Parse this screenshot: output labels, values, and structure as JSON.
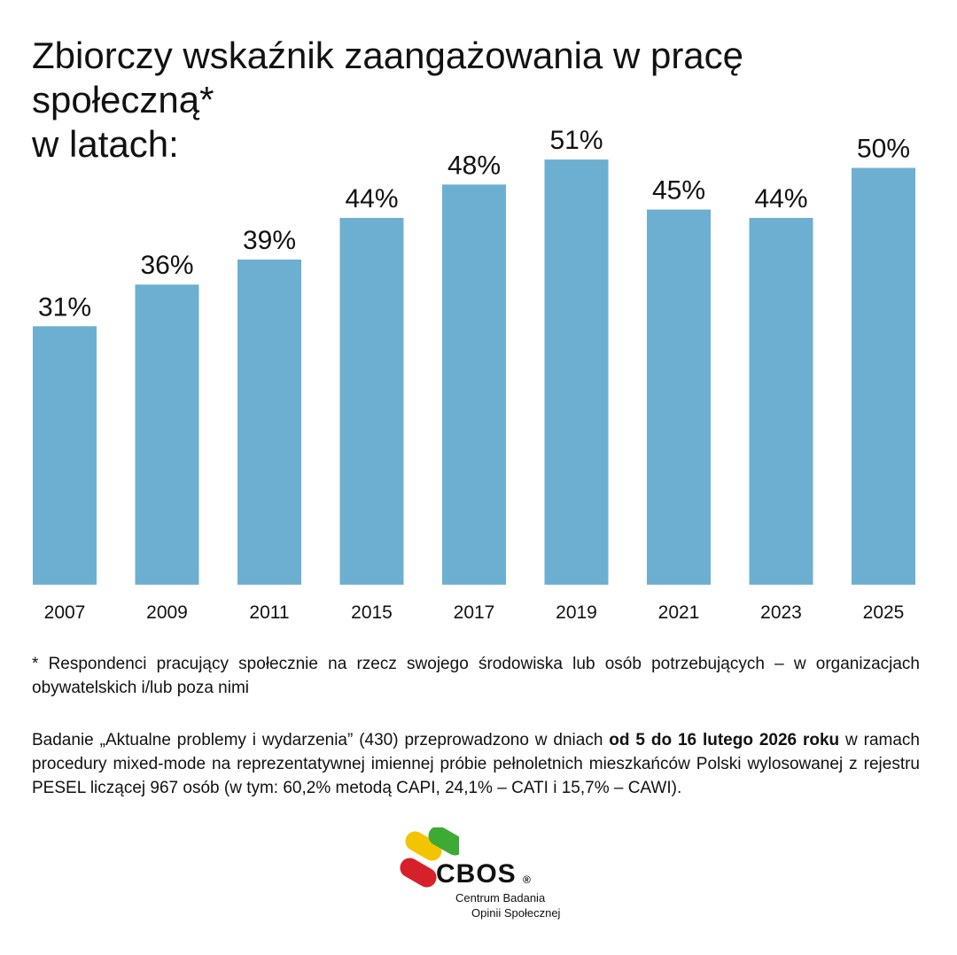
{
  "chart_data": {
    "type": "bar",
    "title": "Zbiorczy wskaźnik zaangażowania w pracę społeczną*",
    "subtitle": "w latach:",
    "categories": [
      "2007",
      "2009",
      "2011",
      "2015",
      "2017",
      "2019",
      "2021",
      "2023",
      "2025"
    ],
    "values": [
      31,
      36,
      39,
      44,
      48,
      51,
      45,
      44,
      50
    ],
    "data_labels": [
      "31%",
      "36%",
      "39%",
      "44%",
      "48%",
      "51%",
      "45%",
      "44%",
      "50%"
    ],
    "unit": "%",
    "ylim": [
      0,
      70
    ],
    "grid": false,
    "legend": "none",
    "bar_color": "#6DAFD1"
  },
  "footnote": "* Respondenci pracujący społecznie na rzecz swojego środowiska lub osób potrzebujących – w organizacjach obywatelskich i/lub poza nimi",
  "methodology": {
    "part1": "Badanie „Aktualne problemy i wydarzenia” (430) przeprowadzono w dniach ",
    "bold": "od 5 do 16 lutego 2026 roku",
    "part2": " w ramach procedury mixed-mode na reprezentatywnej imiennej próbie pełnoletnich mieszkańców Polski wylosowanej z rejestru PESEL liczącej 967 osób (w tym: 60,2% metodą CAPI, 24,1% – CATI i 15,7% – CAWI)."
  },
  "logo": {
    "name": "CBOS",
    "registered": "®",
    "subtitle_line1": "Centrum Badania",
    "subtitle_line2": "Opinii Społecznej",
    "colors": [
      "#F2C500",
      "#3DAA35",
      "#D6202A"
    ]
  }
}
